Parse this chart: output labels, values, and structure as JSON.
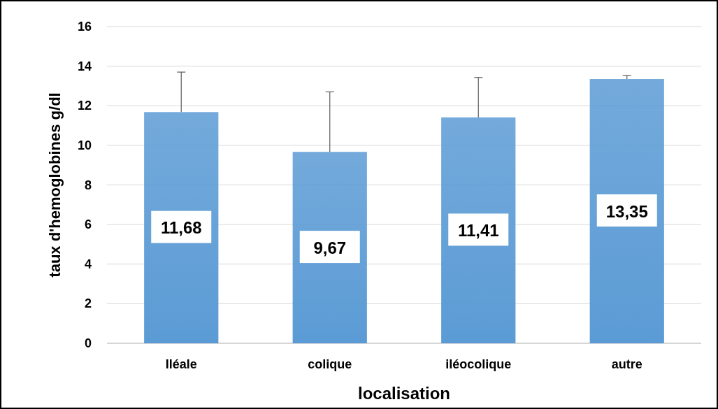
{
  "chart_data": {
    "type": "bar",
    "xlabel": "localisation",
    "ylabel": "taux d'hemoglobines g/dl",
    "categories": [
      "Iléale",
      "colique",
      "iléocolique",
      "autre"
    ],
    "values": [
      11.68,
      9.67,
      11.41,
      13.35
    ],
    "errors": [
      [
        11.68,
        13.7
      ],
      [
        9.67,
        12.7
      ],
      [
        11.41,
        13.43
      ],
      [
        13.35,
        13.53
      ]
    ],
    "value_labels": [
      "11,68",
      "9,67",
      "11,41",
      "13,35"
    ],
    "color": "#5b9bd5",
    "ylim": [
      0,
      16
    ],
    "yticks": [
      0,
      2,
      4,
      6,
      8,
      10,
      12,
      14,
      16
    ],
    "grid": "y"
  }
}
